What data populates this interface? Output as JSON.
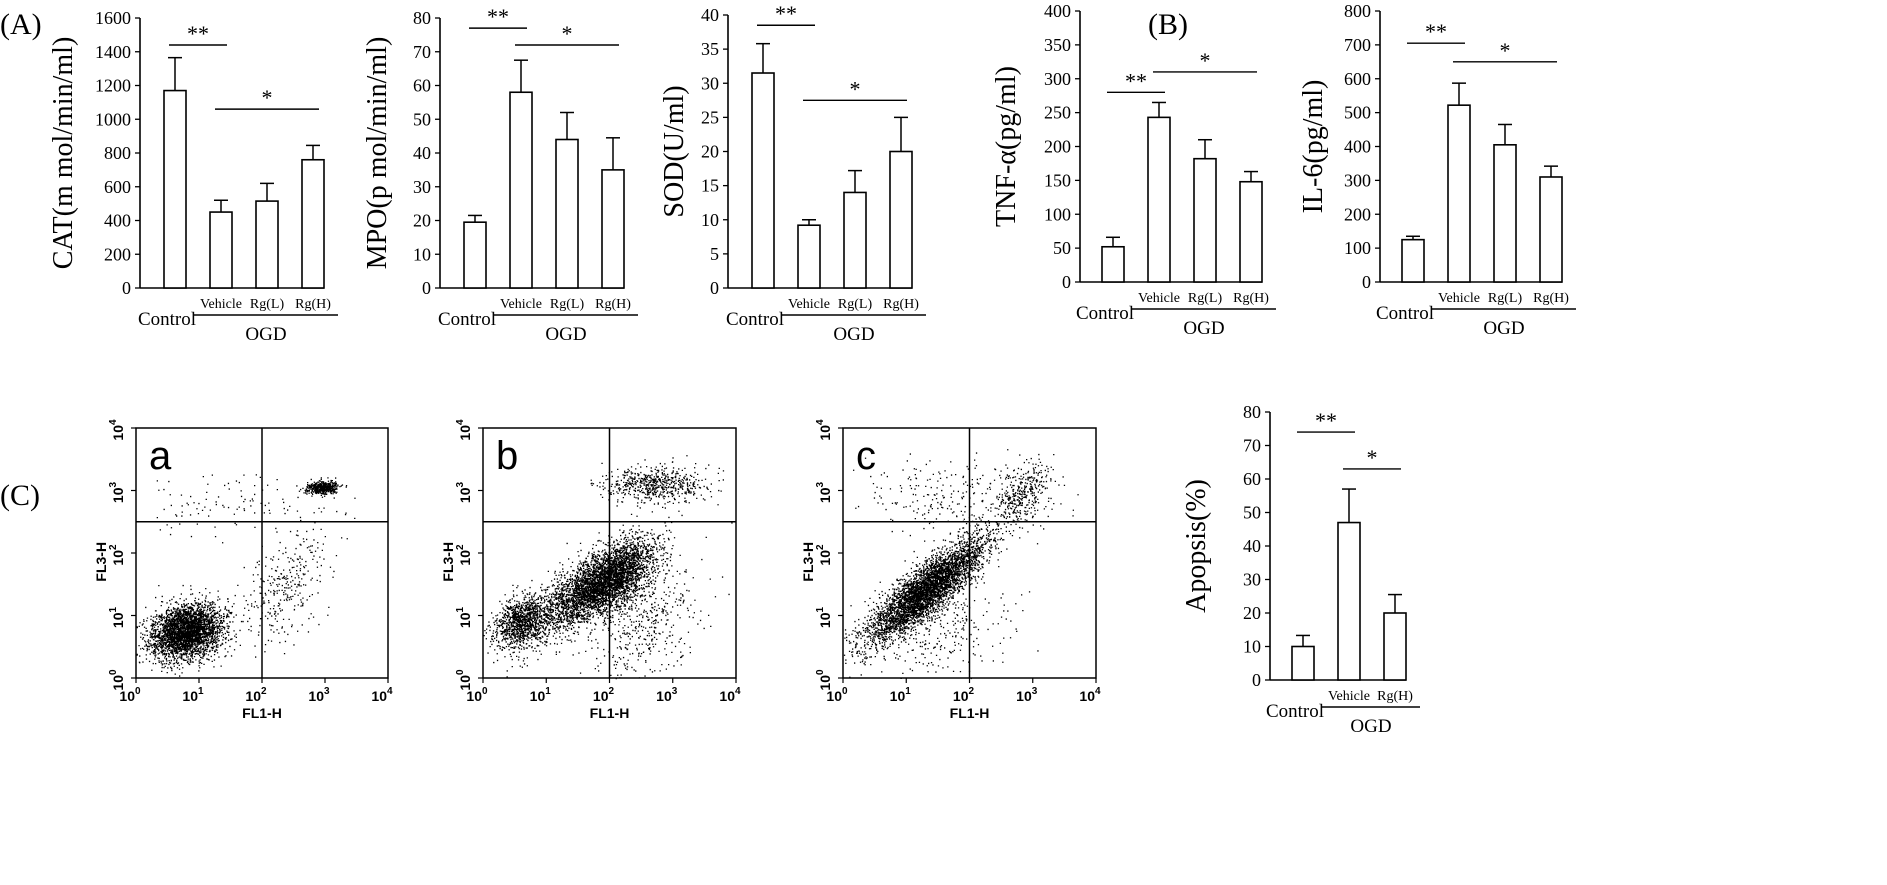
{
  "panel_labels": {
    "a": "(A)",
    "b": "(B)",
    "c": "(C)"
  },
  "chart_data": [
    {
      "type": "bar",
      "ylabel": "CAT(m mol/min/ml)",
      "ylim": [
        0,
        1600
      ],
      "ytick_step": 200,
      "categories": [
        "Control",
        "Vehicle",
        "Rg(L)",
        "Rg(H)"
      ],
      "group_label": "OGD",
      "values": [
        1170,
        450,
        515,
        760
      ],
      "errors": [
        195,
        70,
        105,
        85
      ],
      "significance": [
        {
          "label": "**",
          "from": 0,
          "to": 1,
          "y": 1440
        },
        {
          "label": "*",
          "from": 1,
          "to": 3,
          "y": 1060
        }
      ]
    },
    {
      "type": "bar",
      "ylabel": "MPO(p mol/min/ml)",
      "ylim": [
        0,
        80
      ],
      "ytick_step": 10,
      "categories": [
        "Control",
        "Vehicle",
        "Rg(L)",
        "Rg(H)"
      ],
      "group_label": "OGD",
      "values": [
        19.5,
        58,
        44,
        35
      ],
      "errors": [
        2,
        9.5,
        8,
        9.5
      ],
      "significance": [
        {
          "label": "**",
          "from": 0,
          "to": 1,
          "y": 77
        },
        {
          "label": "*",
          "from": 1,
          "to": 3,
          "y": 72
        }
      ]
    },
    {
      "type": "bar",
      "ylabel": "SOD(U/ml)",
      "ylim": [
        0,
        40
      ],
      "ytick_step": 5,
      "categories": [
        "Control",
        "Vehicle",
        "Rg(L)",
        "Rg(H)"
      ],
      "group_label": "OGD",
      "values": [
        31.5,
        9.2,
        14,
        20
      ],
      "errors": [
        4.3,
        0.8,
        3.2,
        5
      ],
      "significance": [
        {
          "label": "**",
          "from": 0,
          "to": 1,
          "y": 38.5
        },
        {
          "label": "*",
          "from": 1,
          "to": 3,
          "y": 27.5
        }
      ]
    },
    {
      "type": "bar",
      "ylabel": "TNF-α(pg/ml)",
      "ylim": [
        0,
        400
      ],
      "ytick_step": 50,
      "categories": [
        "Control",
        "Vehicle",
        "Rg(L)",
        "Rg(H)"
      ],
      "group_label": "OGD",
      "values": [
        52,
        243,
        182,
        148
      ],
      "errors": [
        14,
        22,
        28,
        15
      ],
      "significance": [
        {
          "label": "**",
          "from": 0,
          "to": 1,
          "y": 280
        },
        {
          "label": "*",
          "from": 1,
          "to": 3,
          "y": 310
        }
      ]
    },
    {
      "type": "bar",
      "ylabel": "IL-6(pg/ml)",
      "ylim": [
        0,
        800
      ],
      "ytick_step": 100,
      "categories": [
        "Control",
        "Vehicle",
        "Rg(L)",
        "Rg(H)"
      ],
      "group_label": "OGD",
      "values": [
        125,
        522,
        405,
        310
      ],
      "errors": [
        10,
        65,
        60,
        32
      ],
      "significance": [
        {
          "label": "**",
          "from": 0,
          "to": 1,
          "y": 705
        },
        {
          "label": "*",
          "from": 1,
          "to": 3,
          "y": 650
        }
      ]
    },
    {
      "type": "bar",
      "ylabel": "Apopsis(%)",
      "ylim": [
        0,
        80
      ],
      "ytick_step": 10,
      "categories": [
        "Control",
        "Vehicle",
        "Rg(H)"
      ],
      "group_label": "OGD",
      "values": [
        10,
        47,
        20
      ],
      "errors": [
        3.3,
        10,
        5.5
      ],
      "significance": [
        {
          "label": "**",
          "from": 0,
          "to": 1,
          "y": 74
        },
        {
          "label": "*",
          "from": 1,
          "to": 2,
          "y": 63
        }
      ]
    },
    {
      "type": "scatter",
      "panel": "a",
      "xlabel": "FL1-H",
      "ylabel": "FL3-H",
      "scale": "log",
      "xlim": [
        1,
        10000
      ],
      "ylim": [
        1,
        10000
      ],
      "gate_x": 100,
      "gate_y": 316,
      "ticks": [
        "0",
        "1",
        "2",
        "3",
        "4"
      ],
      "populations": [
        {
          "cx_log": 0.8,
          "cy_log": 0.75,
          "sx": 0.28,
          "sy": 0.22,
          "rho": 0.2,
          "n": 3200
        },
        {
          "cx_log": 2.95,
          "cy_log": 3.05,
          "sx": 0.12,
          "sy": 0.05,
          "rho": 0.1,
          "n": 500
        },
        {
          "cx_log": 2.4,
          "cy_log": 1.5,
          "sx": 0.35,
          "sy": 0.45,
          "rho": 0.5,
          "n": 300
        },
        {
          "cx_log": 1.5,
          "cy_log": 2.8,
          "sx": 0.9,
          "sy": 0.25,
          "rho": 0.0,
          "n": 120
        }
      ]
    },
    {
      "type": "scatter",
      "panel": "b",
      "xlabel": "FL1-H",
      "ylabel": "FL3-H",
      "scale": "log",
      "xlim": [
        1,
        10000
      ],
      "ylim": [
        1,
        10000
      ],
      "gate_x": 100,
      "gate_y": 316,
      "ticks": [
        "0",
        "1",
        "2",
        "3",
        "4"
      ],
      "populations": [
        {
          "cx_log": 0.55,
          "cy_log": 0.9,
          "sx": 0.2,
          "sy": 0.2,
          "rho": 0.3,
          "n": 900
        },
        {
          "cx_log": 2.0,
          "cy_log": 1.6,
          "sx": 0.35,
          "sy": 0.3,
          "rho": 0.6,
          "n": 3200
        },
        {
          "cx_log": 1.3,
          "cy_log": 1.2,
          "sx": 0.4,
          "sy": 0.35,
          "rho": 0.7,
          "n": 1200
        },
        {
          "cx_log": 2.7,
          "cy_log": 3.1,
          "sx": 0.4,
          "sy": 0.15,
          "rho": 0.0,
          "n": 600
        },
        {
          "cx_log": 2.5,
          "cy_log": 1.0,
          "sx": 0.45,
          "sy": 0.5,
          "rho": 0.2,
          "n": 500
        }
      ]
    },
    {
      "type": "scatter",
      "panel": "c",
      "xlabel": "FL1-H",
      "ylabel": "FL3-H",
      "scale": "log",
      "xlim": [
        1,
        10000
      ],
      "ylim": [
        1,
        10000
      ],
      "gate_x": 100,
      "gate_y": 316,
      "ticks": [
        "0",
        "1",
        "2",
        "3",
        "4"
      ],
      "populations": [
        {
          "cx_log": 1.3,
          "cy_log": 1.4,
          "sx": 0.45,
          "sy": 0.4,
          "rho": 0.85,
          "n": 4200
        },
        {
          "cx_log": 2.8,
          "cy_log": 2.9,
          "sx": 0.2,
          "sy": 0.25,
          "rho": 0.4,
          "n": 350
        },
        {
          "cx_log": 1.8,
          "cy_log": 2.9,
          "sx": 0.8,
          "sy": 0.3,
          "rho": 0.0,
          "n": 250
        },
        {
          "cx_log": 1.5,
          "cy_log": 0.8,
          "sx": 0.6,
          "sy": 0.4,
          "rho": 0.2,
          "n": 300
        }
      ]
    }
  ]
}
